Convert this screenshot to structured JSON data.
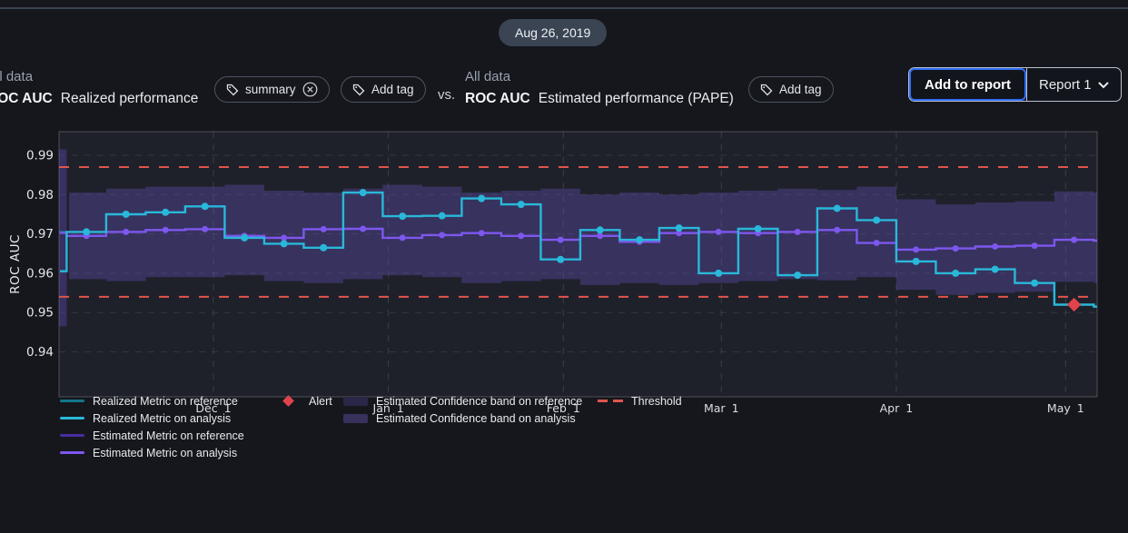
{
  "top_bar": {
    "date_badge": "Aug 26, 2019"
  },
  "header": {
    "left": {
      "scope": "All data",
      "metric": "ROC AUC",
      "title": "Realized performance",
      "tag": "summary",
      "add_tag": "Add tag"
    },
    "vs": "vs.",
    "right": {
      "scope": "All data",
      "metric": "ROC AUC",
      "title": "Estimated performance (PAPE)",
      "add_tag": "Add tag"
    },
    "report_button": {
      "add": "Add to report",
      "name": "Report 1"
    }
  },
  "chart_data": {
    "type": "line",
    "subtype": "step-comparison",
    "ylabel": "ROC AUC",
    "y_ticks": [
      0.99,
      0.98,
      0.97,
      0.96,
      0.95,
      0.94
    ],
    "ylim": [
      0.9285,
      0.9965
    ],
    "grid": true,
    "legend_position": "bottom",
    "x_ticks": [
      {
        "label": "Dec 1",
        "date": "2018-12-01"
      },
      {
        "label": "Jan 1",
        "date": "2019-01-01"
      },
      {
        "label": "Feb 1",
        "date": "2019-02-01"
      },
      {
        "label": "Mar 1",
        "date": "2019-03-01"
      },
      {
        "label": "Apr 1",
        "date": "2019-04-01"
      },
      {
        "label": "May 1",
        "date": "2019-05-01"
      }
    ],
    "dates": [
      "2018-10-29",
      "2018-11-05",
      "2018-11-12",
      "2018-11-19",
      "2018-11-26",
      "2018-12-03",
      "2018-12-10",
      "2018-12-17",
      "2018-12-24",
      "2018-12-31",
      "2019-01-07",
      "2019-01-14",
      "2019-01-21",
      "2019-01-28",
      "2019-02-04",
      "2019-02-11",
      "2019-02-18",
      "2019-02-25",
      "2019-03-04",
      "2019-03-11",
      "2019-03-18",
      "2019-03-25",
      "2019-04-01",
      "2019-04-08",
      "2019-04-15",
      "2019-04-22",
      "2019-04-29",
      "2019-05-06"
    ],
    "series": [
      {
        "name": "Realized Metric on analysis",
        "color": "#29b8d9",
        "values": [
          0.9605,
          0.9705,
          0.975,
          0.9755,
          0.977,
          0.969,
          0.9675,
          0.9665,
          0.9805,
          0.9745,
          0.9746,
          0.979,
          0.9775,
          0.9635,
          0.971,
          0.9685,
          0.9715,
          0.96,
          0.9713,
          0.9595,
          0.9765,
          0.9735,
          0.963,
          0.96,
          0.961,
          0.9575,
          0.952,
          0.9515
        ]
      },
      {
        "name": "Estimated Metric on analysis",
        "color": "#7e57ee",
        "values": [
          0.9703,
          0.9695,
          0.9705,
          0.971,
          0.9712,
          0.9695,
          0.969,
          0.9712,
          0.9713,
          0.969,
          0.9697,
          0.9702,
          0.9695,
          0.9685,
          0.9695,
          0.968,
          0.9702,
          0.9705,
          0.9702,
          0.9705,
          0.971,
          0.9677,
          0.966,
          0.9663,
          0.9668,
          0.967,
          0.9685,
          0.9683
        ]
      }
    ],
    "confidence_band_analysis": {
      "name": "Estimated Confidence band on analysis",
      "color": "rgba(114,88,214,0.30)",
      "upper": [
        0.9805,
        0.9805,
        0.9815,
        0.982,
        0.982,
        0.9825,
        0.981,
        0.9805,
        0.9815,
        0.9825,
        0.982,
        0.9805,
        0.981,
        0.9815,
        0.98,
        0.9805,
        0.98,
        0.9805,
        0.981,
        0.9815,
        0.9812,
        0.982,
        0.9788,
        0.9775,
        0.978,
        0.9783,
        0.9808,
        0.9805
      ],
      "lower": [
        0.9585,
        0.9585,
        0.958,
        0.959,
        0.959,
        0.9595,
        0.958,
        0.9575,
        0.9585,
        0.9595,
        0.959,
        0.9575,
        0.958,
        0.9585,
        0.957,
        0.9575,
        0.957,
        0.9575,
        0.958,
        0.9585,
        0.9582,
        0.959,
        0.9558,
        0.9545,
        0.955,
        0.9553,
        0.9578,
        0.9575
      ]
    },
    "reference_remnant": {
      "note": "end of reference period visible at left edge",
      "realized": 0.9705,
      "realized_color": "#12768a",
      "estimated": 0.9703,
      "estimated_color": "#4a2da0",
      "band": [
        0.9465,
        0.9915
      ],
      "band_color": "rgba(96,70,190,0.38)"
    },
    "thresholds": {
      "upper": 0.987,
      "lower": 0.954,
      "color": "#e1544d",
      "style": "dashed"
    },
    "alert": {
      "date": "2019-04-29",
      "value": 0.952,
      "color": "#e0434b"
    },
    "legend": [
      {
        "label": "Realized Metric on reference",
        "type": "line",
        "color": "#12768a"
      },
      {
        "label": "Realized Metric on analysis",
        "type": "line",
        "color": "#29b8d9"
      },
      {
        "label": "Estimated Metric on reference",
        "type": "line",
        "color": "#4a2da0"
      },
      {
        "label": "Estimated Metric on analysis",
        "type": "line",
        "color": "#7e57ee"
      },
      {
        "label": "Alert",
        "type": "diamond",
        "color": "#e0434b"
      },
      {
        "label": "Estimated Confidence band on reference",
        "type": "band",
        "color": "#2a2748"
      },
      {
        "label": "Estimated Confidence band on analysis",
        "type": "band",
        "color": "#37315c"
      },
      {
        "label": "Threshold",
        "type": "dash",
        "color": "#e1544d"
      }
    ]
  }
}
